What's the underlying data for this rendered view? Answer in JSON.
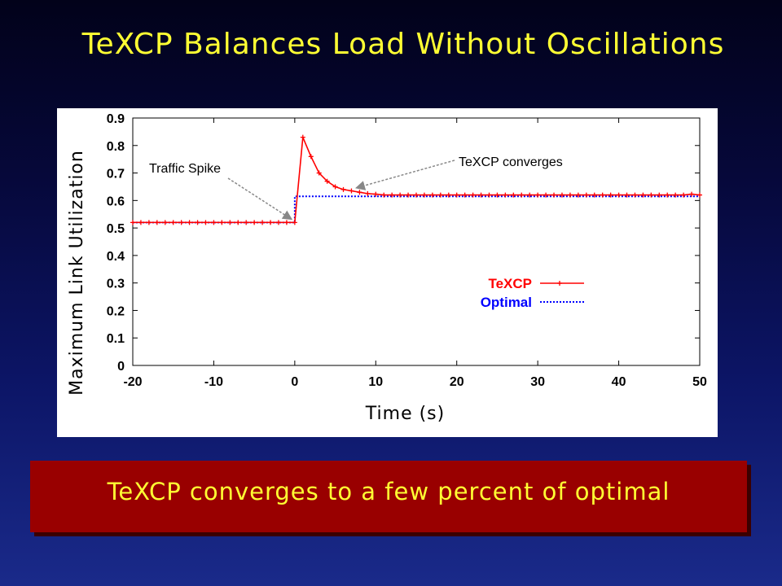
{
  "slide": {
    "title": "TeXCP Balances Load Without Oscillations",
    "callout": "TeXCP converges to a few percent of optimal"
  },
  "colors": {
    "background": "#0c1566",
    "title": "#ffff33",
    "callout_background": "#990000",
    "texcp_series": "#ff0000",
    "optimal_series": "#0000ff"
  },
  "chart_data": {
    "type": "line",
    "xlabel": "Time (s)",
    "ylabel": "Maximum Link Utilization",
    "xlim": [
      -20,
      50
    ],
    "ylim": [
      0,
      0.9
    ],
    "x_ticks": [
      "-20",
      "-10",
      "0",
      "10",
      "20",
      "30",
      "40",
      "50"
    ],
    "y_ticks": [
      "0",
      "0.1",
      "0.2",
      "0.3",
      "0.4",
      "0.5",
      "0.6",
      "0.7",
      "0.8",
      "0.9"
    ],
    "grid": false,
    "legend_position": "center-right",
    "series": [
      {
        "name": "TeXCP",
        "style": "solid line with plus markers",
        "x": [
          -20,
          -19,
          -18,
          -17,
          -16,
          -15,
          -14,
          -13,
          -12,
          -11,
          -10,
          -9,
          -8,
          -7,
          -6,
          -5,
          -4,
          -3,
          -2,
          -1,
          0,
          1,
          2,
          3,
          4,
          5,
          6,
          7,
          8,
          9,
          10,
          11,
          12,
          13,
          14,
          15,
          16,
          17,
          18,
          19,
          20,
          21,
          22,
          23,
          24,
          25,
          26,
          27,
          28,
          29,
          30,
          31,
          32,
          33,
          34,
          35,
          36,
          37,
          38,
          39,
          40,
          41,
          42,
          43,
          44,
          45,
          46,
          47,
          48,
          49,
          50
        ],
        "y": [
          0.52,
          0.52,
          0.52,
          0.52,
          0.52,
          0.52,
          0.52,
          0.52,
          0.52,
          0.52,
          0.52,
          0.52,
          0.52,
          0.52,
          0.52,
          0.52,
          0.52,
          0.52,
          0.52,
          0.52,
          0.52,
          0.83,
          0.76,
          0.7,
          0.67,
          0.65,
          0.64,
          0.635,
          0.63,
          0.625,
          0.623,
          0.62,
          0.62,
          0.62,
          0.62,
          0.62,
          0.62,
          0.62,
          0.62,
          0.62,
          0.62,
          0.62,
          0.62,
          0.62,
          0.62,
          0.62,
          0.62,
          0.62,
          0.62,
          0.62,
          0.62,
          0.62,
          0.62,
          0.62,
          0.62,
          0.62,
          0.62,
          0.62,
          0.62,
          0.62,
          0.62,
          0.62,
          0.62,
          0.62,
          0.62,
          0.62,
          0.62,
          0.62,
          0.62,
          0.623,
          0.62
        ]
      },
      {
        "name": "Optimal",
        "style": "dotted line",
        "x": [
          -20,
          0,
          0,
          50
        ],
        "y": [
          0.52,
          0.52,
          0.615,
          0.615
        ]
      }
    ],
    "annotations": [
      {
        "text": "Traffic Spike",
        "points_to": {
          "x": 0,
          "y": 0.52
        }
      },
      {
        "text": "TeXCP converges",
        "points_to": {
          "x": 7,
          "y": 0.64
        }
      }
    ]
  }
}
